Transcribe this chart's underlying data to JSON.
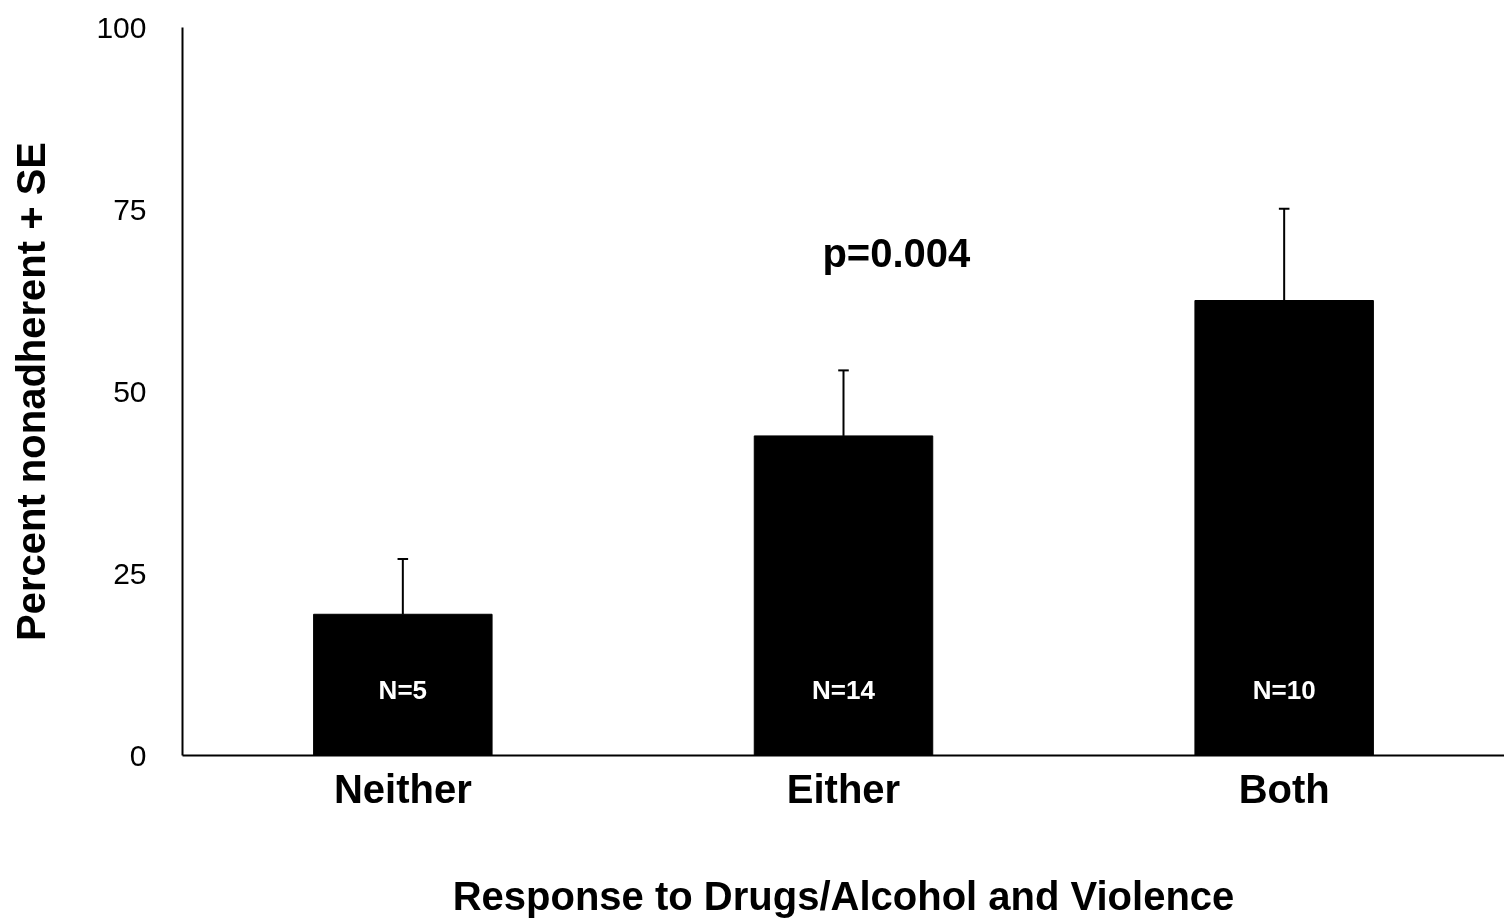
{
  "chart_data": {
    "type": "bar",
    "xlabel": "Response to Drugs/Alcohol and Violence",
    "ylabel": "Percent nonadherent + SE",
    "categories": [
      "Neither",
      "Either",
      "Both"
    ],
    "values": [
      19.4,
      43.9,
      62.5
    ],
    "color": "#000000",
    "errors": [
      [
        19.4,
        27.0
      ],
      [
        43.9,
        52.9
      ],
      [
        62.5,
        75.1
      ]
    ],
    "ylim": [
      0,
      100
    ],
    "yticks": [
      0,
      25,
      50,
      75,
      100
    ],
    "grid": false,
    "annotations": [
      "p=0.004",
      "N=5",
      "N=14",
      "N=10"
    ]
  }
}
